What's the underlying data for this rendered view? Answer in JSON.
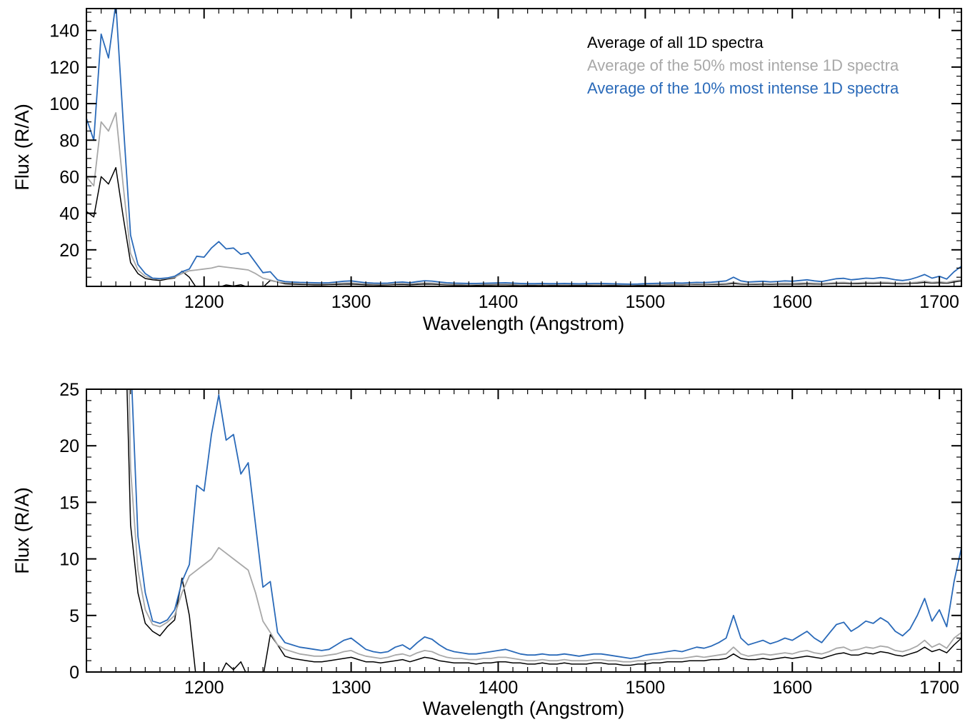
{
  "figure": {
    "background": "#ffffff"
  },
  "chart_data": {
    "type": "line",
    "x": [
      1120,
      1125,
      1130,
      1135,
      1140,
      1145,
      1150,
      1155,
      1160,
      1165,
      1170,
      1175,
      1180,
      1185,
      1190,
      1195,
      1200,
      1205,
      1210,
      1215,
      1220,
      1225,
      1230,
      1235,
      1240,
      1245,
      1250,
      1255,
      1260,
      1265,
      1270,
      1275,
      1280,
      1285,
      1290,
      1295,
      1300,
      1305,
      1310,
      1315,
      1320,
      1325,
      1330,
      1335,
      1340,
      1345,
      1350,
      1355,
      1360,
      1365,
      1370,
      1375,
      1380,
      1385,
      1390,
      1395,
      1400,
      1405,
      1410,
      1415,
      1420,
      1425,
      1430,
      1435,
      1440,
      1445,
      1450,
      1455,
      1460,
      1465,
      1470,
      1475,
      1480,
      1485,
      1490,
      1495,
      1500,
      1505,
      1510,
      1515,
      1520,
      1525,
      1530,
      1535,
      1540,
      1545,
      1550,
      1555,
      1560,
      1565,
      1570,
      1575,
      1580,
      1585,
      1590,
      1595,
      1600,
      1605,
      1610,
      1615,
      1620,
      1625,
      1630,
      1635,
      1640,
      1645,
      1650,
      1655,
      1660,
      1665,
      1670,
      1675,
      1680,
      1685,
      1690,
      1695,
      1700,
      1705,
      1710,
      1715
    ],
    "series": [
      {
        "name": "Average of all 1D spectra",
        "color": "#000000",
        "width": 1.5,
        "values": [
          41,
          38,
          60,
          56,
          65,
          38,
          13,
          7,
          4.3,
          3.6,
          3.2,
          4.0,
          4.6,
          8.3,
          5.0,
          -1.0,
          -2.0,
          -1.5,
          -0.5,
          0.8,
          0.2,
          0.9,
          -0.5,
          -1.5,
          -0.5,
          3.3,
          2.4,
          1.4,
          1.2,
          1.1,
          1.0,
          0.9,
          0.9,
          1.0,
          1.1,
          1.2,
          1.3,
          1.1,
          0.9,
          0.9,
          0.8,
          0.9,
          1.0,
          1.1,
          0.9,
          1.1,
          1.3,
          1.2,
          1.0,
          0.9,
          0.8,
          0.8,
          0.8,
          0.7,
          0.8,
          0.8,
          0.9,
          0.9,
          0.8,
          0.8,
          0.7,
          0.7,
          0.8,
          0.7,
          0.7,
          0.8,
          0.7,
          0.7,
          0.7,
          0.8,
          0.8,
          0.7,
          0.7,
          0.6,
          0.6,
          0.7,
          0.7,
          0.8,
          0.8,
          0.9,
          0.9,
          0.9,
          1.0,
          1.0,
          1.0,
          1.1,
          1.1,
          1.2,
          1.6,
          1.2,
          1.1,
          1.1,
          1.2,
          1.1,
          1.2,
          1.3,
          1.2,
          1.3,
          1.4,
          1.3,
          1.2,
          1.4,
          1.6,
          1.7,
          1.5,
          1.5,
          1.7,
          1.6,
          1.8,
          1.7,
          1.5,
          1.4,
          1.6,
          1.8,
          2.2,
          1.8,
          2.0,
          1.7,
          2.4,
          3.0
        ]
      },
      {
        "name": "Average of the 50% most intense 1D spectra",
        "color": "#a8a8a8",
        "width": 1.8,
        "values": [
          60,
          55,
          90,
          85,
          95,
          55,
          18,
          9,
          5.5,
          4.2,
          4.0,
          4.4,
          5.0,
          7.0,
          8.5,
          9.0,
          9.5,
          10.0,
          11.0,
          10.5,
          10.0,
          9.5,
          9.0,
          7.0,
          4.5,
          3.5,
          2.4,
          2.0,
          1.8,
          1.6,
          1.5,
          1.4,
          1.4,
          1.5,
          1.6,
          1.8,
          1.9,
          1.6,
          1.4,
          1.3,
          1.2,
          1.3,
          1.5,
          1.6,
          1.4,
          1.7,
          1.9,
          1.8,
          1.5,
          1.3,
          1.2,
          1.2,
          1.1,
          1.1,
          1.2,
          1.2,
          1.3,
          1.3,
          1.2,
          1.1,
          1.0,
          1.0,
          1.1,
          1.0,
          1.0,
          1.1,
          1.0,
          1.0,
          1.0,
          1.1,
          1.1,
          1.0,
          1.0,
          0.9,
          0.9,
          1.0,
          1.0,
          1.1,
          1.1,
          1.2,
          1.2,
          1.2,
          1.3,
          1.4,
          1.3,
          1.4,
          1.5,
          1.6,
          2.2,
          1.6,
          1.4,
          1.5,
          1.6,
          1.5,
          1.6,
          1.7,
          1.6,
          1.8,
          1.9,
          1.7,
          1.6,
          1.8,
          2.1,
          2.2,
          1.9,
          2.0,
          2.2,
          2.1,
          2.3,
          2.2,
          1.9,
          1.8,
          2.0,
          2.3,
          2.8,
          2.2,
          2.5,
          2.1,
          3.0,
          3.5
        ]
      },
      {
        "name": "Average of the 10% most intense 1D spectra",
        "color": "#2a6ab9",
        "width": 1.8,
        "values": [
          92,
          80,
          138,
          125,
          155,
          90,
          28,
          12,
          7,
          4.5,
          4.3,
          4.6,
          5.5,
          8.0,
          9.5,
          16.5,
          16.0,
          21.0,
          24.5,
          20.5,
          21.0,
          17.5,
          18.5,
          13.0,
          7.5,
          8.0,
          3.5,
          2.6,
          2.4,
          2.2,
          2.1,
          2.0,
          1.9,
          2.0,
          2.4,
          2.8,
          3.0,
          2.5,
          2.0,
          1.8,
          1.7,
          1.8,
          2.2,
          2.4,
          2.0,
          2.6,
          3.1,
          2.9,
          2.4,
          2.0,
          1.8,
          1.7,
          1.6,
          1.6,
          1.7,
          1.8,
          1.9,
          2.0,
          1.8,
          1.6,
          1.5,
          1.5,
          1.6,
          1.5,
          1.5,
          1.6,
          1.5,
          1.4,
          1.5,
          1.6,
          1.6,
          1.5,
          1.4,
          1.3,
          1.2,
          1.3,
          1.5,
          1.6,
          1.7,
          1.8,
          1.9,
          1.8,
          2.0,
          2.2,
          2.1,
          2.3,
          2.6,
          3.0,
          5.0,
          3.0,
          2.4,
          2.6,
          2.8,
          2.5,
          2.7,
          3.0,
          2.8,
          3.2,
          3.6,
          3.0,
          2.6,
          3.4,
          4.2,
          4.4,
          3.6,
          4.0,
          4.5,
          4.3,
          4.8,
          4.4,
          3.6,
          3.2,
          3.8,
          5.0,
          6.5,
          4.5,
          5.5,
          4.0,
          8.0,
          11.0
        ]
      }
    ],
    "panels": [
      {
        "xlabel": "Wavelength (Angstrom)",
        "ylabel": "Flux (R/A)",
        "xlim": [
          1120,
          1715
        ],
        "ylim": [
          0,
          152
        ],
        "xticks": [
          1200,
          1300,
          1400,
          1500,
          1600,
          1700
        ],
        "yticks": [
          20,
          40,
          60,
          80,
          100,
          120,
          140
        ],
        "x_minor_step": 10,
        "y_minor_step": 5,
        "grid": false,
        "legend": true,
        "legend_position": "top-right"
      },
      {
        "xlabel": "Wavelength (Angstrom)",
        "ylabel": "Flux (R/A)",
        "xlim": [
          1120,
          1715
        ],
        "ylim": [
          0,
          25
        ],
        "xticks": [
          1200,
          1300,
          1400,
          1500,
          1600,
          1700
        ],
        "yticks": [
          0,
          5,
          10,
          15,
          20,
          25
        ],
        "x_minor_step": 10,
        "y_minor_step": 1,
        "grid": false,
        "legend": false
      }
    ]
  }
}
